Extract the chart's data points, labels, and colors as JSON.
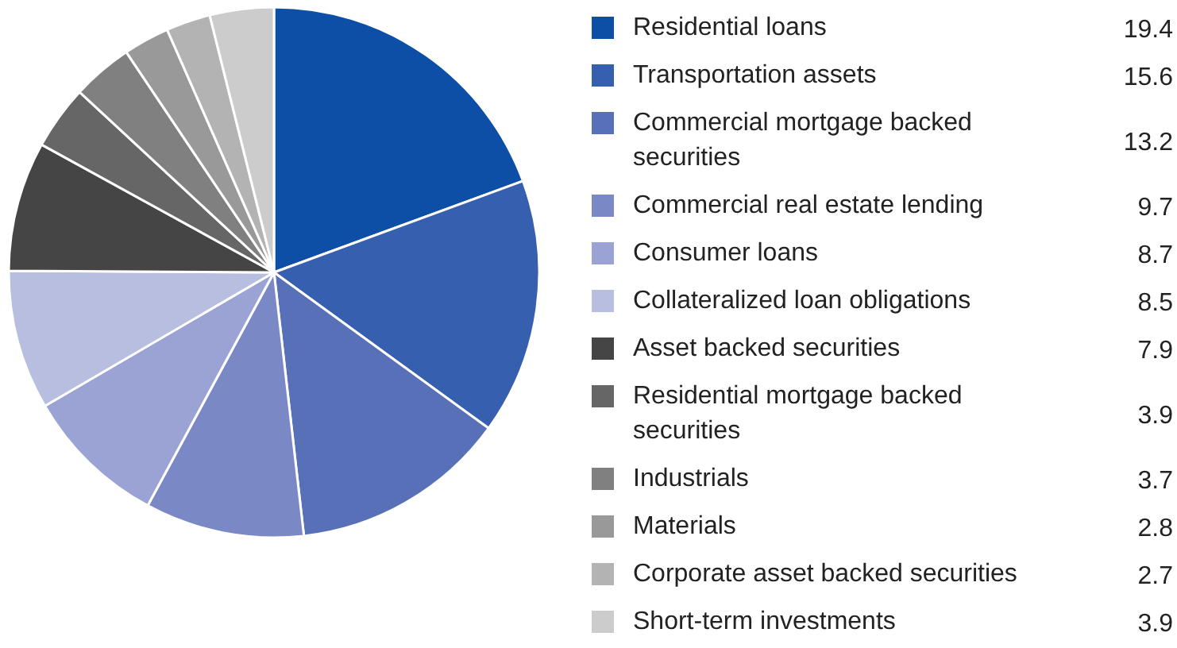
{
  "chart_data": {
    "type": "pie",
    "categories": [
      "Residential loans",
      "Transportation assets",
      "Commercial mortgage backed securities",
      "Commercial real estate lending",
      "Consumer loans",
      "Collateralized loan obligations",
      "Asset backed securities",
      "Residential mortgage backed securities",
      "Industrials",
      "Materials",
      "Corporate asset backed securities",
      "Short-term investments"
    ],
    "values": [
      19.4,
      15.6,
      13.2,
      9.7,
      8.7,
      8.5,
      7.9,
      3.9,
      3.7,
      2.8,
      2.7,
      3.9
    ],
    "colors": [
      "#0d4ea6",
      "#375fb0",
      "#5770b8",
      "#7a89c6",
      "#9aa3d3",
      "#b8bee0",
      "#454545",
      "#666666",
      "#808080",
      "#999999",
      "#b3b3b3",
      "#cccccc"
    ],
    "data_labels": true,
    "legend": "right"
  }
}
